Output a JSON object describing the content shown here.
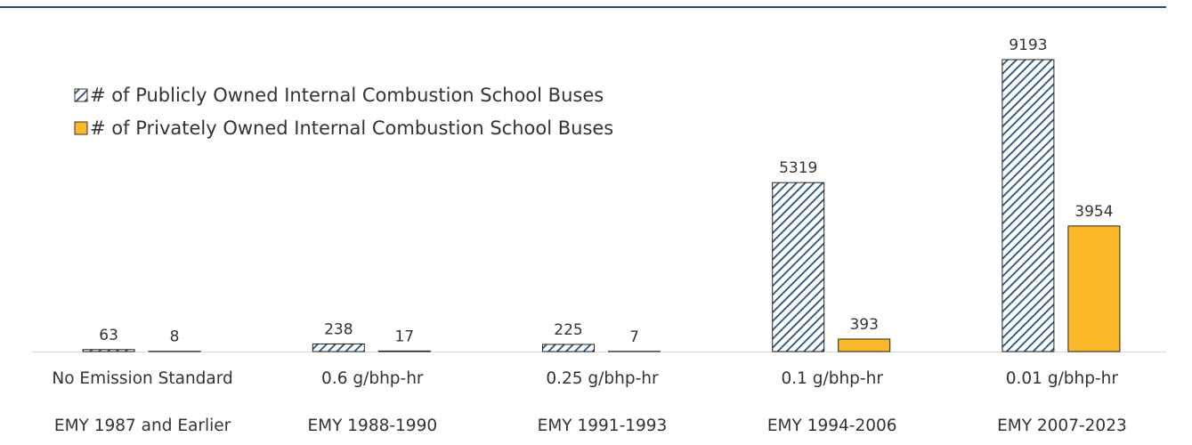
{
  "chart_data": {
    "type": "bar",
    "categories": [
      [
        "No Emission Standard",
        "EMY 1987 and Earlier"
      ],
      [
        "0.6 g/bhp-hr",
        "EMY 1988-1990"
      ],
      [
        "0.25 g/bhp-hr",
        "EMY 1991-1993"
      ],
      [
        "0.1 g/bhp-hr",
        "EMY 1994-2006"
      ],
      [
        "0.01 g/bhp-hr",
        "EMY 2007-2023"
      ]
    ],
    "series": [
      {
        "name": "# of Publicly Owned Internal Combustion School Buses",
        "color": "#1f4e79",
        "pattern": "hatch",
        "values": [
          63,
          238,
          225,
          5319,
          9193
        ]
      },
      {
        "name": "# of Privately Owned Internal Combustion School Buses",
        "color": "#fbb829",
        "values": [
          8,
          17,
          7,
          393,
          3954
        ]
      }
    ],
    "ylim": [
      0,
      10000
    ],
    "legend": "upper left"
  }
}
